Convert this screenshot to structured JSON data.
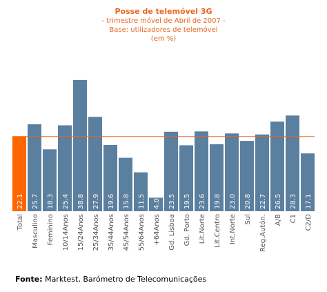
{
  "chart_data": {
    "type": "bar",
    "title": "Posse de telemóvel 3G",
    "subtitle_lines": [
      "- trimestre móvel de Abril de 2007 -",
      "Base: utilizadores de telemóvel",
      "(em %)"
    ],
    "categories": [
      "Total",
      "Masculino",
      "Feminino",
      "10/14Anos",
      "15/24Anos",
      "25/34Anos",
      "35/44Anos",
      "45/54Anos",
      "55/64Anos",
      "+64Anos",
      "Gd. Lisboa",
      "Gd. Porto",
      "Lit.Norte",
      "Lit.Centro",
      "Int.Norte",
      "Sul",
      "Reg.Autón.",
      "A/B",
      "C1",
      "C2/D"
    ],
    "values": [
      22.1,
      25.7,
      18.3,
      25.4,
      38.8,
      27.9,
      19.6,
      15.8,
      11.5,
      4.0,
      23.5,
      19.5,
      23.6,
      19.8,
      23.0,
      20.8,
      22.7,
      26.5,
      28.3,
      17.1
    ],
    "value_labels": [
      "22.1",
      "25.7",
      "18.3",
      "25.4",
      "38.8",
      "27.9",
      "19.6",
      "15.8",
      "11.5",
      "4.0",
      "23.5",
      "19.5",
      "23.6",
      "19.8",
      "23.0",
      "20.8",
      "22.7",
      "26.5",
      "28.3",
      "17.1"
    ],
    "reference_line_value": 22.1,
    "highlight_index": 0,
    "ylim": [
      0,
      40
    ],
    "grid": false,
    "colors": {
      "bar": "#5b7f9f",
      "highlight": "#ff6600",
      "reference_line": "#e8661e",
      "value_label": "#ffffff",
      "axis_label": "#555555"
    }
  },
  "source": {
    "label": "Fonte:",
    "text": " Marktest, Barómetro de Telecomunicações"
  }
}
